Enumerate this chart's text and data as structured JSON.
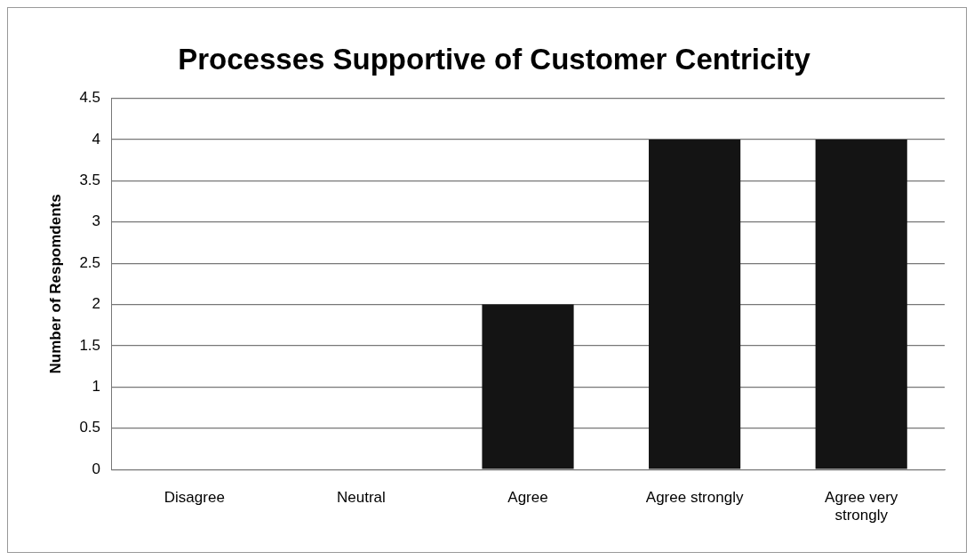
{
  "chart_data": {
    "type": "bar",
    "title": "Processes Supportive of Customer Centricity",
    "ylabel": "Number of Respomdents",
    "categories": [
      "Disagree",
      "Neutral",
      "Agree",
      "Agree strongly",
      "Agree very strongly"
    ],
    "values": [
      0,
      0,
      2,
      4,
      4
    ],
    "color": "#141414",
    "ylim": [
      0,
      4.5
    ],
    "yticks": [
      0,
      0.5,
      1,
      1.5,
      2,
      2.5,
      3,
      3.5,
      4,
      4.5
    ],
    "grid": "y",
    "legend": false
  }
}
